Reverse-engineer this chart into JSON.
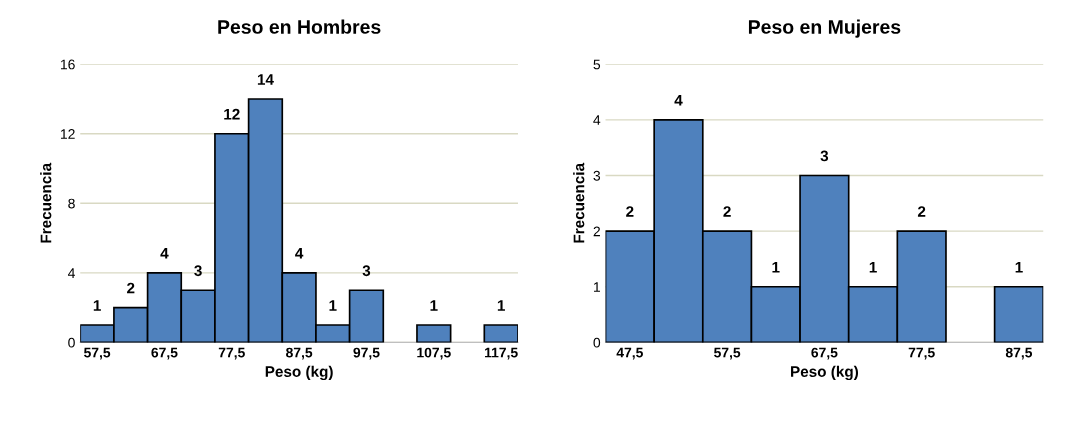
{
  "chart_data": [
    {
      "type": "histogram",
      "title": "Peso en Hombres",
      "xlabel": "Peso (kg)",
      "ylabel": "Frecuencia",
      "color": "#4f81bd",
      "bins": [
        55,
        60,
        65,
        70,
        75,
        80,
        85,
        90,
        95,
        100,
        105,
        110,
        115,
        120
      ],
      "values": [
        1,
        2,
        4,
        3,
        12,
        14,
        4,
        1,
        3,
        0,
        1,
        0,
        1
      ],
      "value_labels": [
        "1",
        "2",
        "4",
        "3",
        "12",
        "14",
        "4",
        "1",
        "3",
        null,
        "1",
        null,
        "1"
      ],
      "xlim": [
        55,
        120
      ],
      "xticks": [
        {
          "value": 57.5,
          "label": "57,5"
        },
        {
          "value": 67.5,
          "label": "67,5"
        },
        {
          "value": 77.5,
          "label": "77,5"
        },
        {
          "value": 87.5,
          "label": "87,5"
        },
        {
          "value": 97.5,
          "label": "97,5"
        },
        {
          "value": 107.5,
          "label": "107,5"
        },
        {
          "value": 117.5,
          "label": "117,5"
        }
      ],
      "ylim": [
        0,
        16
      ],
      "yticks": [
        0,
        4,
        8,
        12,
        16
      ],
      "grid": "y"
    },
    {
      "type": "histogram",
      "title": "Peso en Mujeres",
      "xlabel": "Peso (kg)",
      "ylabel": "Frecuencia",
      "color": "#4f81bd",
      "bins": [
        45,
        50,
        55,
        60,
        65,
        70,
        75,
        80,
        85,
        90
      ],
      "values": [
        2,
        4,
        2,
        1,
        3,
        1,
        2,
        0,
        1
      ],
      "value_labels": [
        "2",
        "4",
        "2",
        "1",
        "3",
        "1",
        "2",
        null,
        "1"
      ],
      "xlim": [
        45,
        90
      ],
      "xticks": [
        {
          "value": 47.5,
          "label": "47,5"
        },
        {
          "value": 57.5,
          "label": "57,5"
        },
        {
          "value": 67.5,
          "label": "67,5"
        },
        {
          "value": 77.5,
          "label": "77,5"
        },
        {
          "value": 87.5,
          "label": "87,5"
        }
      ],
      "ylim": [
        0,
        5
      ],
      "yticks": [
        0,
        1,
        2,
        3,
        4,
        5
      ],
      "grid": "y"
    }
  ]
}
